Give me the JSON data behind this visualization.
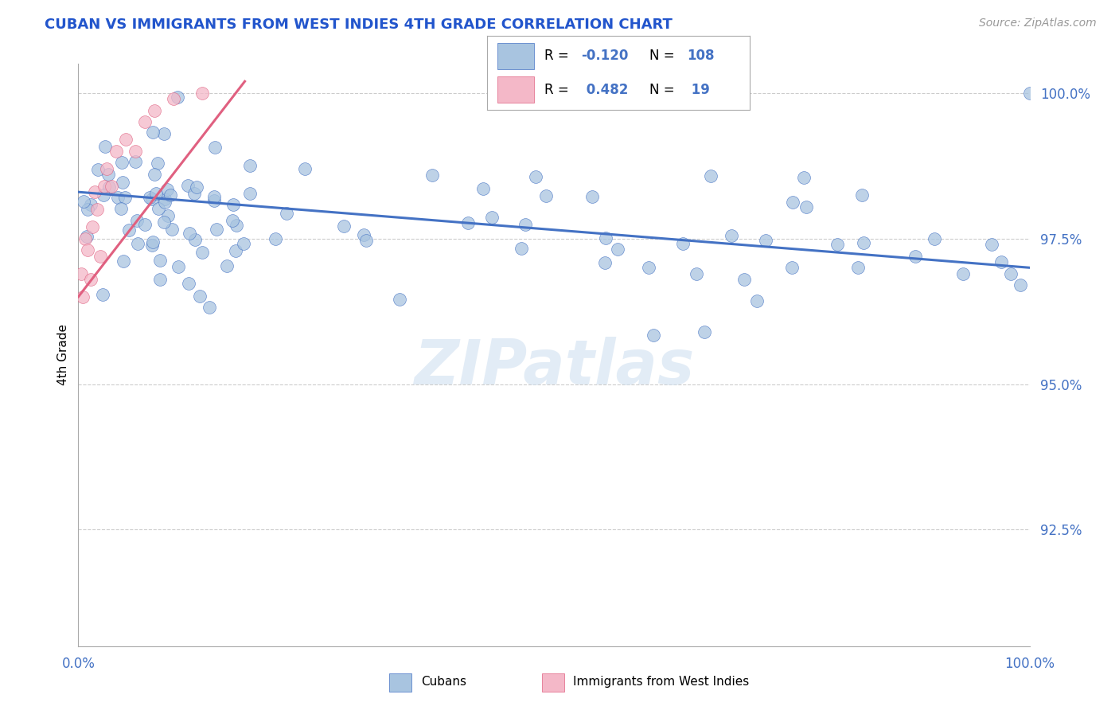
{
  "title": "CUBAN VS IMMIGRANTS FROM WEST INDIES 4TH GRADE CORRELATION CHART",
  "source": "Source: ZipAtlas.com",
  "ylabel": "4th Grade",
  "xlim": [
    0.0,
    1.0
  ],
  "ylim": [
    0.905,
    1.005
  ],
  "yticks": [
    0.925,
    0.95,
    0.975,
    1.0
  ],
  "ytick_labels": [
    "92.5%",
    "95.0%",
    "97.5%",
    "100.0%"
  ],
  "watermark": "ZIPatlas",
  "blue_color": "#a8c4e0",
  "blue_line_color": "#4472c4",
  "blue_edge_color": "#4472c4",
  "pink_color": "#f4b8c8",
  "pink_line_color": "#e06080",
  "pink_edge_color": "#e06080",
  "title_color": "#2255cc",
  "source_color": "#999999",
  "tick_color": "#4472c4",
  "grid_color": "#cccccc",
  "legend_r_blue": "-0.120",
  "legend_n_blue": "108",
  "legend_r_pink": "0.482",
  "legend_n_pink": "19"
}
